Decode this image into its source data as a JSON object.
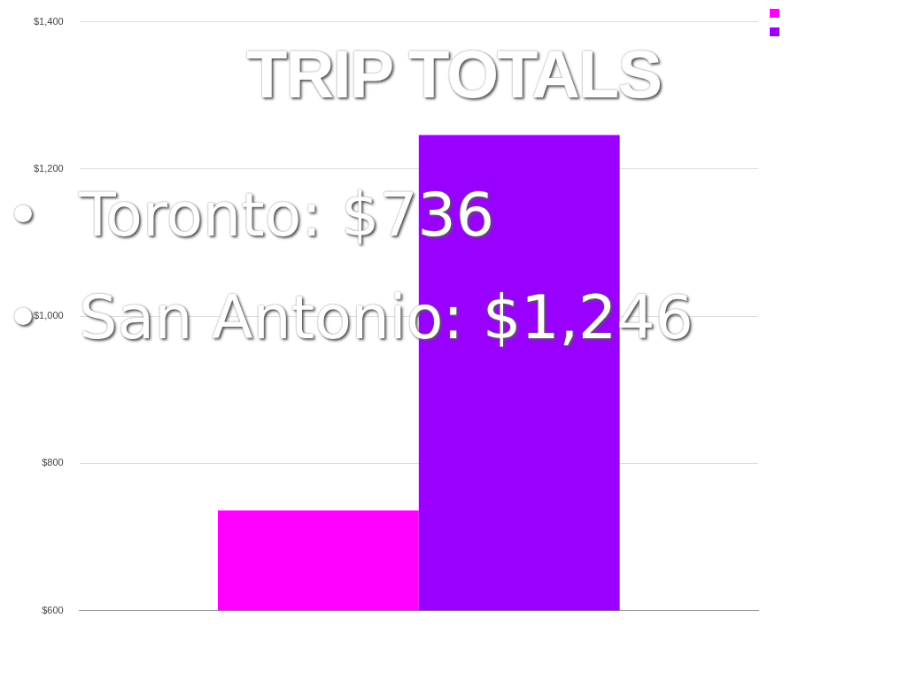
{
  "chart_data": {
    "type": "bar",
    "title": "TRIP TOTALS",
    "categories": [
      null
    ],
    "series": [
      {
        "color": "#ff00ff",
        "values": [
          736
        ]
      },
      {
        "color": "#9900ff",
        "values": [
          1246
        ]
      }
    ],
    "ylim": [
      600,
      1400
    ],
    "yticks": [
      {
        "value": 600,
        "label": "$600"
      },
      {
        "value": 800,
        "label": "$800"
      },
      {
        "value": 1000,
        "label": "$1,000"
      },
      {
        "value": 1200,
        "label": "$1,200"
      },
      {
        "value": 1400,
        "label": "$1,400"
      }
    ],
    "grid": "y",
    "annotations": [
      "•  Toronto: $736",
      "•  San Antonio: $1,246"
    ]
  }
}
